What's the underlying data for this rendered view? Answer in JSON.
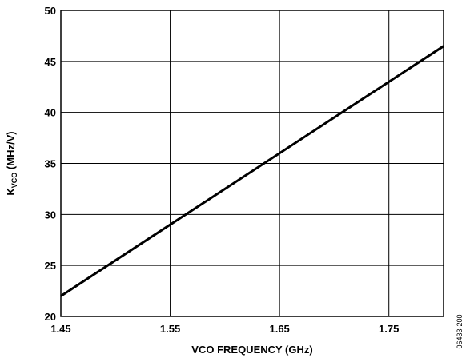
{
  "chart_data": {
    "type": "line",
    "xlabel": "VCO FREQUENCY (GHz)",
    "ylabel_main": "K",
    "ylabel_sub": "VCO",
    "ylabel_rest": " (MHz/V)",
    "xlim": [
      1.45,
      1.8
    ],
    "ylim": [
      20,
      50
    ],
    "x_ticks": [
      1.45,
      1.55,
      1.65,
      1.75
    ],
    "x_tick_labels": [
      "1.45",
      "1.55",
      "1.65",
      "1.75"
    ],
    "y_ticks": [
      20,
      25,
      30,
      35,
      40,
      45,
      50
    ],
    "y_tick_labels": [
      "20",
      "25",
      "30",
      "35",
      "40",
      "45",
      "50"
    ],
    "grid": true,
    "series": [
      {
        "x": [
          1.45,
          1.8
        ],
        "y": [
          22,
          46.5
        ]
      }
    ],
    "line_color": "#000000",
    "figure_code": "06433-200"
  }
}
